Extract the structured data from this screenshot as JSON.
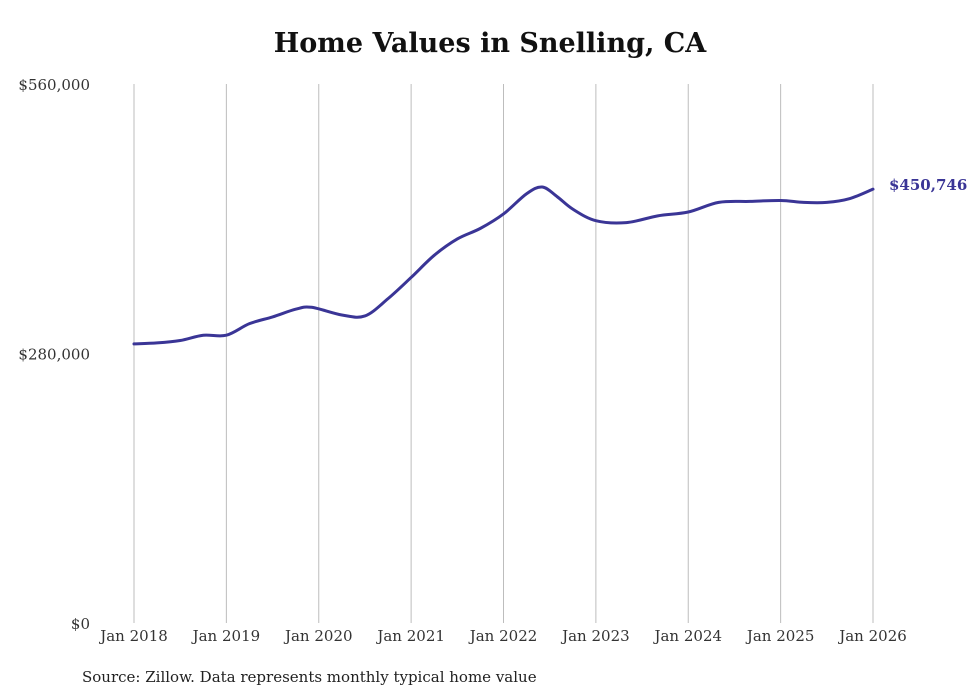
{
  "chart_data": {
    "type": "line",
    "title": "Home Values in Snelling, CA",
    "xlabel": "",
    "ylabel": "",
    "ylim": [
      0,
      560000
    ],
    "y_ticks": [
      {
        "value": 0,
        "label": "$0"
      },
      {
        "value": 280000,
        "label": "$280,000"
      },
      {
        "value": 560000,
        "label": "$560,000"
      }
    ],
    "x_ticks": [
      {
        "value": 2018,
        "label": "Jan 2018"
      },
      {
        "value": 2019,
        "label": "Jan 2019"
      },
      {
        "value": 2020,
        "label": "Jan 2020"
      },
      {
        "value": 2021,
        "label": "Jan 2021"
      },
      {
        "value": 2022,
        "label": "Jan 2022"
      },
      {
        "value": 2023,
        "label": "Jan 2023"
      },
      {
        "value": 2024,
        "label": "Jan 2024"
      },
      {
        "value": 2025,
        "label": "Jan 2025"
      },
      {
        "value": 2026,
        "label": "Jan 2026"
      }
    ],
    "xlim": [
      2018,
      2026
    ],
    "grid": "vertical",
    "series": [
      {
        "name": "Typical home value",
        "color": "#3a3596",
        "end_label": "$450,746",
        "x": [
          2018.0,
          2018.25,
          2018.5,
          2018.75,
          2019.0,
          2019.25,
          2019.5,
          2019.75,
          2019.92,
          2020.25,
          2020.5,
          2020.75,
          2021.0,
          2021.25,
          2021.5,
          2021.75,
          2022.0,
          2022.25,
          2022.42,
          2022.58,
          2022.75,
          2023.0,
          2023.33,
          2023.67,
          2024.0,
          2024.33,
          2024.67,
          2025.0,
          2025.25,
          2025.5,
          2025.75,
          2026.0
        ],
        "values": [
          290000,
          291000,
          293500,
          299000,
          299000,
          311000,
          318000,
          326000,
          328000,
          320000,
          319000,
          337000,
          359000,
          382000,
          399000,
          410000,
          425000,
          446000,
          453000,
          443000,
          430000,
          418000,
          416000,
          423000,
          427000,
          437000,
          438000,
          439000,
          437000,
          437000,
          441000,
          450746
        ]
      }
    ]
  },
  "footer": {
    "source": "Source: Zillow. Data represents monthly typical home value"
  }
}
